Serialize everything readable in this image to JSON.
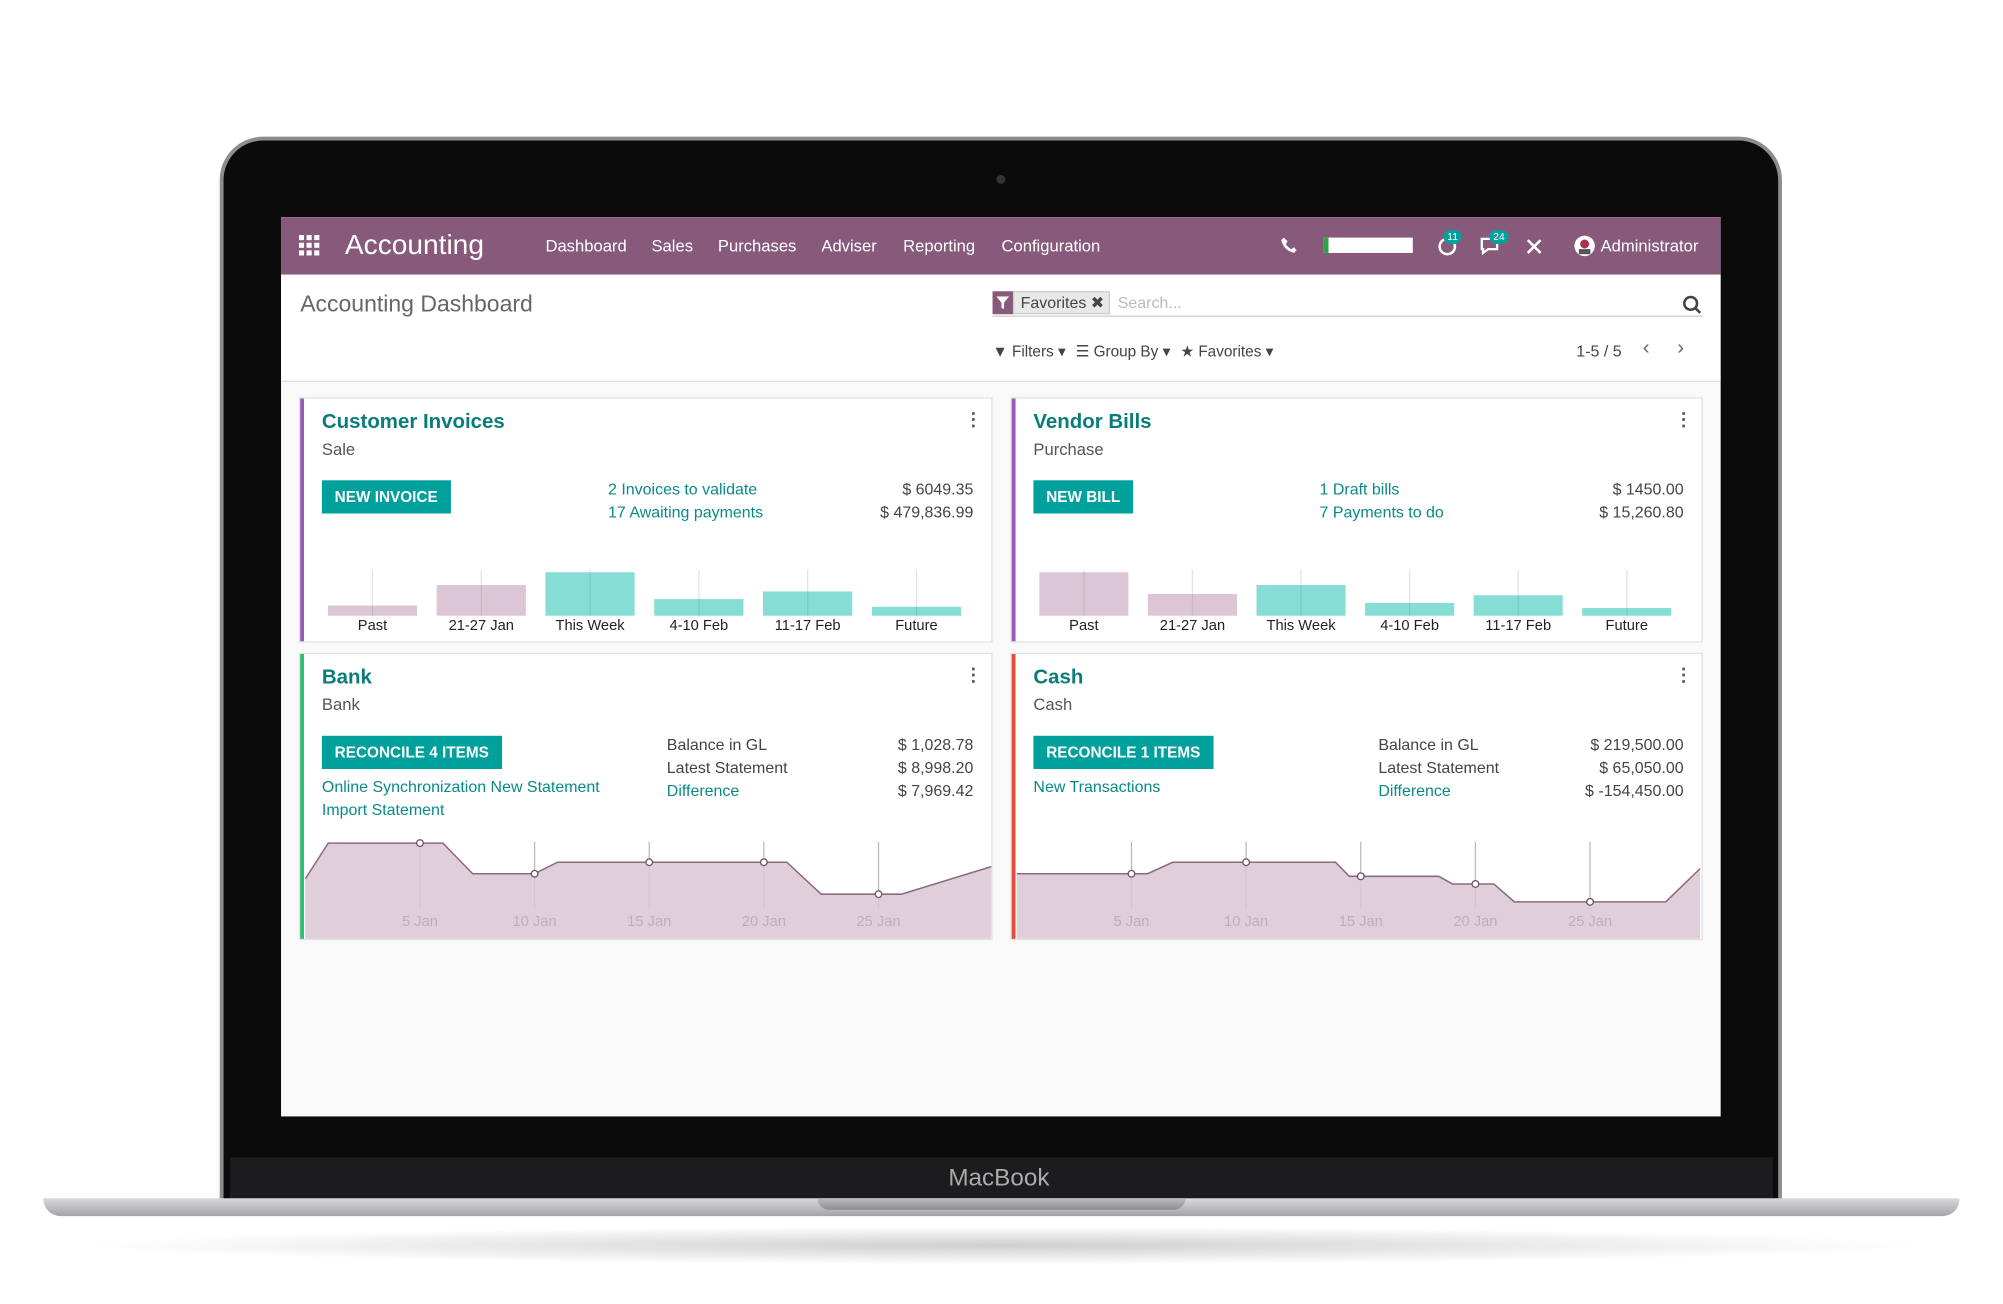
{
  "device": "MacBook",
  "navbar": {
    "app": "Accounting",
    "menu": [
      "Dashboard",
      "Sales",
      "Purchases",
      "Adviser",
      "Reporting",
      "Configuration"
    ],
    "badges": [
      11,
      24
    ],
    "user": "Administrator"
  },
  "control_panel": {
    "title": "Accounting Dashboard",
    "facet": "Favorites",
    "search_placeholder": "Search...",
    "filters": "Filters",
    "group_by": "Group By",
    "favorites": "Favorites",
    "pager": "1-5 / 5"
  },
  "cards": [
    {
      "title": "Customer Invoices",
      "subtitle": "Sale",
      "button": "NEW INVOICE",
      "rows": [
        {
          "label": "2 Invoices to validate",
          "amount": "$ 6049.35"
        },
        {
          "label": "17 Awaiting payments",
          "amount": "$ 479,836.99"
        }
      ],
      "chart": {
        "type": "bar",
        "categories": [
          "Past",
          "21-27 Jan",
          "This Week",
          "4-10 Feb",
          "11-17 Feb",
          "Future"
        ],
        "values": [
          8,
          24,
          34,
          13,
          19,
          7
        ],
        "colors": [
          "#dcc6d5",
          "#dcc6d5",
          "#85ddd6",
          "#85ddd6",
          "#85ddd6",
          "#85ddd6"
        ]
      }
    },
    {
      "title": "Vendor Bills",
      "subtitle": "Purchase",
      "button": "NEW BILL",
      "rows": [
        {
          "label": "1 Draft bills",
          "amount": "$ 1450.00"
        },
        {
          "label": "7 Payments to do",
          "amount": "$ 15,260.80"
        }
      ],
      "chart": {
        "type": "bar",
        "categories": [
          "Past",
          "21-27 Jan",
          "This Week",
          "4-10 Feb",
          "11-17 Feb",
          "Future"
        ],
        "values": [
          34,
          17,
          24,
          10,
          16,
          6
        ],
        "colors": [
          "#dcc6d5",
          "#dcc6d5",
          "#85ddd6",
          "#85ddd6",
          "#85ddd6",
          "#85ddd6"
        ]
      }
    },
    {
      "title": "Bank",
      "subtitle": "Bank",
      "button": "RECONCILE 4 ITEMS",
      "links": [
        "Online Synchronization New Statement",
        "Import Statement"
      ],
      "rows": [
        {
          "label": "Balance in GL",
          "amount": "$ 1,028.78"
        },
        {
          "label": "Latest Statement",
          "amount": "$ 8,998.20"
        },
        {
          "label": "Difference",
          "amount": "$ 7,969.42"
        }
      ],
      "chart": {
        "type": "area",
        "color": "#dcc6d5",
        "x": [
          0,
          1,
          5,
          6,
          7.3,
          10,
          11,
          15,
          20,
          21,
          22.5,
          25,
          26,
          30
        ],
        "values": [
          47,
          75,
          75,
          75,
          51,
          51,
          60,
          60,
          60,
          60,
          35,
          35,
          35,
          57
        ],
        "xticks": [
          {
            "value": 5,
            "label": "5 Jan"
          },
          {
            "value": 10,
            "label": "10 Jan"
          },
          {
            "value": 15,
            "label": "15 Jan"
          },
          {
            "value": 20,
            "label": "20 Jan"
          },
          {
            "value": 25,
            "label": "25 Jan"
          }
        ]
      }
    },
    {
      "title": "Cash",
      "subtitle": "Cash",
      "button": "RECONCILE 1 ITEMS",
      "links": [
        "New Transactions"
      ],
      "rows": [
        {
          "label": "Balance in GL",
          "amount": "$ 219,500.00"
        },
        {
          "label": "Latest Statement",
          "amount": "$ 65,050.00"
        },
        {
          "label": "Difference",
          "amount": "$ -154,450.00"
        }
      ],
      "chart": {
        "type": "area",
        "color": "#dcc6d5",
        "x": [
          0,
          5,
          5.7,
          6.8,
          10,
          13.9,
          14.5,
          15,
          18.4,
          19,
          20,
          20.8,
          21.7,
          25,
          28.3,
          29.8
        ],
        "values": [
          51,
          51,
          51,
          60,
          60,
          60,
          49,
          49,
          49,
          43,
          43,
          43,
          29,
          29,
          29,
          55
        ],
        "xticks": [
          {
            "value": 5,
            "label": "5 Jan"
          },
          {
            "value": 10,
            "label": "10 Jan"
          },
          {
            "value": 15,
            "label": "15 Jan"
          },
          {
            "value": 20,
            "label": "20 Jan"
          },
          {
            "value": 25,
            "label": "25 Jan"
          }
        ]
      }
    }
  ]
}
